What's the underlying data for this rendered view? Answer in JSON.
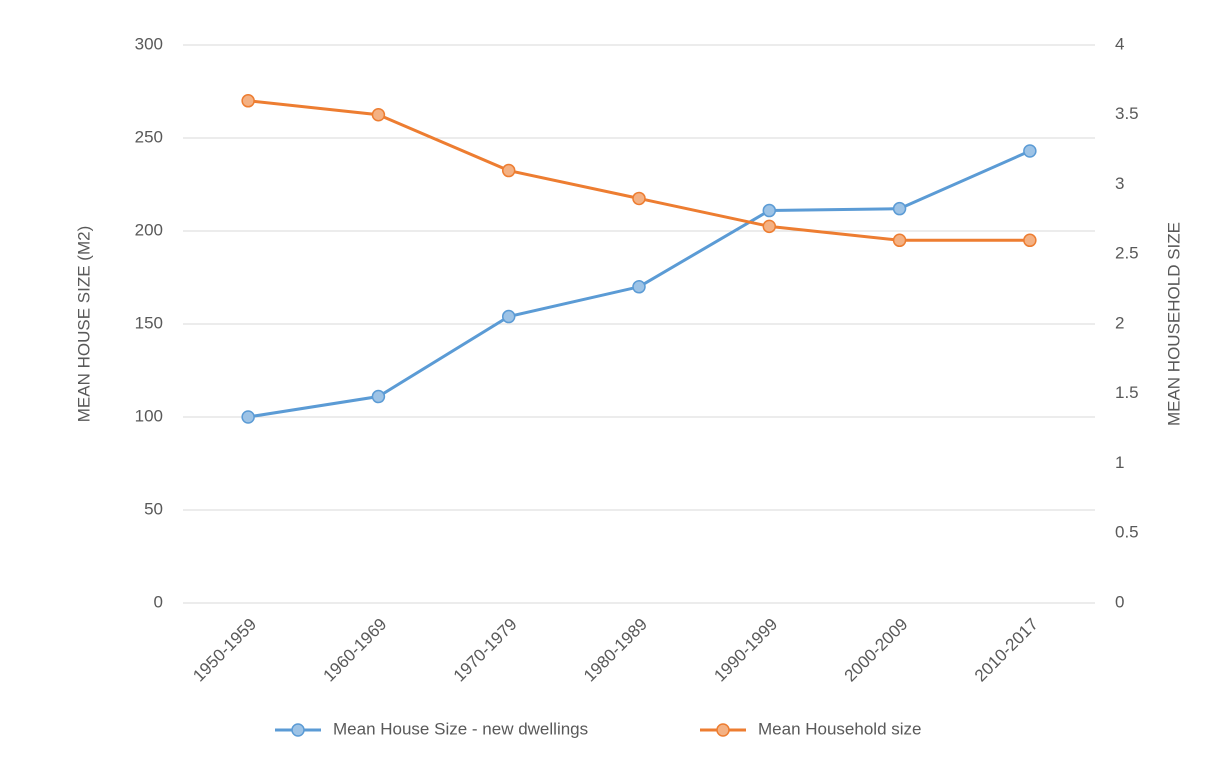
{
  "chart_data": {
    "type": "line",
    "categories": [
      "1950-1959",
      "1960-1969",
      "1970-1979",
      "1980-1989",
      "1990-1999",
      "2000-2009",
      "2010-2017"
    ],
    "series": [
      {
        "name": "Mean House Size - new dwellings",
        "color": "#5b9bd5",
        "values": [
          100,
          111,
          154,
          170,
          211,
          212,
          243
        ]
      },
      {
        "name": "Mean Household size",
        "color": "#ed7d31",
        "axis": "y2",
        "values": [
          3.6,
          3.5,
          3.1,
          2.9,
          2.7,
          2.6,
          2.6
        ]
      }
    ],
    "ylabel": "MEAN HOUSE SIZE (M2)",
    "y2label": "MEAN HOUSEHOLD SIZE",
    "ylim": [
      0,
      300
    ],
    "yticks": [
      0,
      50,
      100,
      150,
      200,
      250,
      300
    ],
    "y2lim": [
      0,
      4
    ],
    "y2ticks": [
      0,
      0.5,
      1,
      1.5,
      2,
      2.5,
      3,
      3.5,
      4
    ],
    "grid": true,
    "legend": "bottom"
  }
}
